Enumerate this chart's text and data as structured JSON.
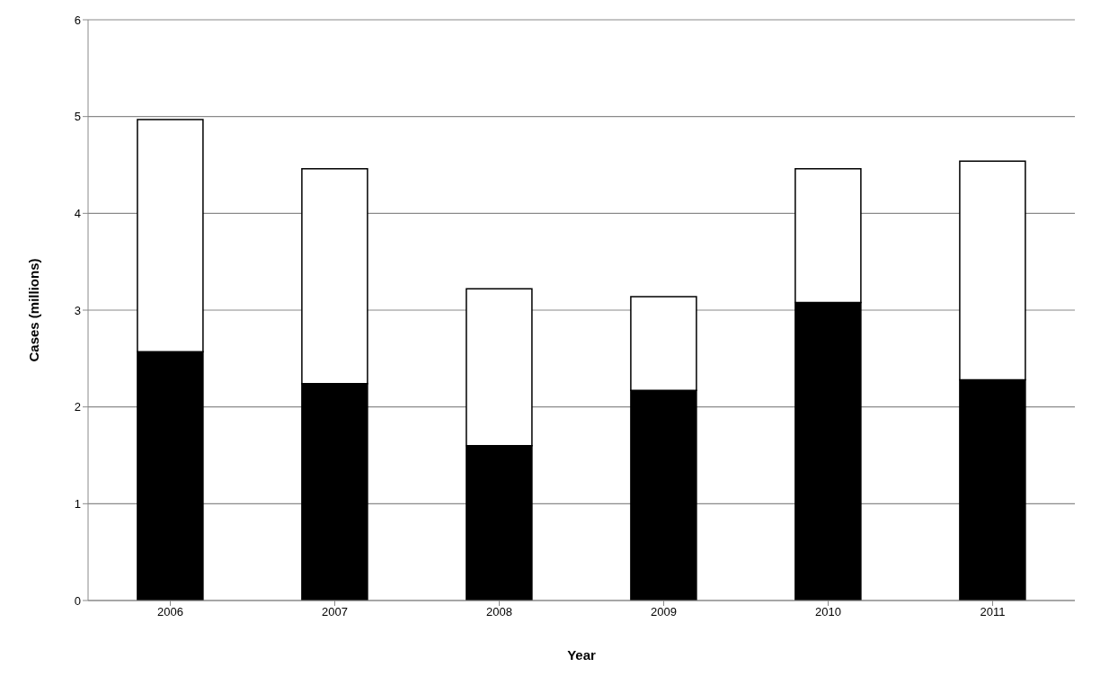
{
  "chart_data": {
    "type": "bar",
    "stacked": true,
    "xlabel": "Year",
    "ylabel": "Cases (millions)",
    "categories": [
      "2006",
      "2007",
      "2008",
      "2009",
      "2010",
      "2011"
    ],
    "series": [
      {
        "color": "#000000",
        "values": [
          2.57,
          2.24,
          1.6,
          2.17,
          3.08,
          2.28
        ]
      },
      {
        "color": "#ffffff",
        "values": [
          2.4,
          2.22,
          1.62,
          0.97,
          1.38,
          2.26
        ]
      }
    ],
    "ylim": [
      0,
      6
    ],
    "yticks": [
      0,
      1,
      2,
      3,
      4,
      5,
      6
    ],
    "grid": "y"
  }
}
